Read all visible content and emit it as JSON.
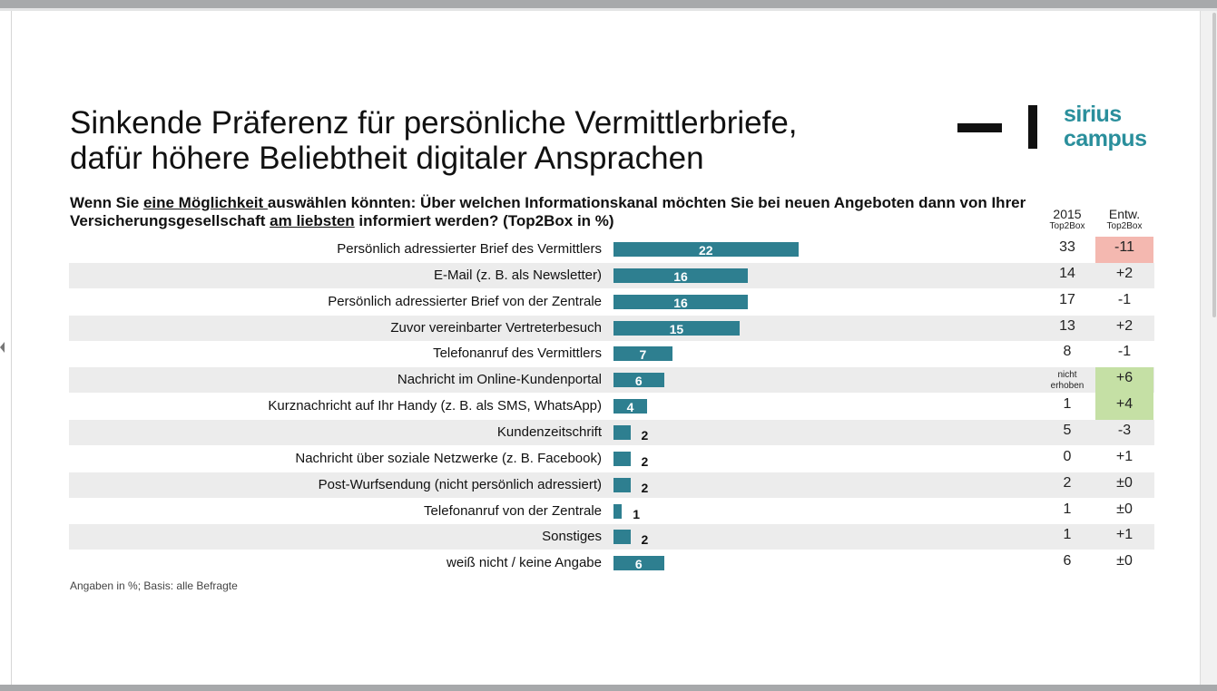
{
  "title_line1": "Sinkende Präferenz für persönliche Vermittlerbriefe,",
  "title_line2": "dafür höhere Beliebtheit digitaler Ansprachen",
  "logo": {
    "line1": "sirius",
    "line2": "campus"
  },
  "question": {
    "p1": "Wenn Sie ",
    "u1": "eine Möglichkeit ",
    "p2": "auswählen könnten: Über welchen Informationskanal möchten Sie bei neuen Angeboten dann von Ihrer Versicherungsgesellschaft ",
    "u2": "am liebsten",
    "p3": " informiert werden? (Top2Box in %)"
  },
  "col2015": {
    "main": "2015",
    "sub": "Top2Box"
  },
  "colEntw": {
    "main": "Entw.",
    "sub": "Top2Box"
  },
  "footnote": "Angaben in %; Basis: alle Befragte",
  "colors": {
    "bar": "#2e7f90",
    "negative_highlight": "#f4b8b0",
    "positive_highlight": "#c5e0a5",
    "stripe": "#ececec",
    "brand": "#2a8f9c"
  },
  "chart_data": {
    "type": "bar",
    "orientation": "horizontal",
    "categories": [
      "Persönlich adressierter Brief des Vermittlers",
      "E-Mail (z. B. als Newsletter)",
      "Persönlich adressierter Brief von der Zentrale",
      "Zuvor vereinbarter Vertreterbesuch",
      "Telefonanruf des Vermittlers",
      "Nachricht im Online-Kundenportal",
      "Kurznachricht auf Ihr Handy (z. B. als SMS, WhatsApp)",
      "Kundenzeitschrift",
      "Nachricht über soziale Netzwerke (z. B. Facebook)",
      "Post-Wurfsendung (nicht persönlich adressiert)",
      "Telefonanruf von der Zentrale",
      "Sonstiges",
      "weiß nicht / keine Angabe"
    ],
    "values": [
      22,
      16,
      16,
      15,
      7,
      6,
      4,
      2,
      2,
      2,
      1,
      2,
      6
    ],
    "value_labels": [
      "22",
      "16",
      "16",
      "15",
      "7",
      "6",
      "4",
      "2",
      "2",
      "2",
      "1",
      "2",
      "6"
    ],
    "values_2015": [
      "33",
      "14",
      "17",
      "13",
      "8",
      "nicht erhoben",
      "1",
      "5",
      "0",
      "2",
      "1",
      "1",
      "6"
    ],
    "change": [
      "-11",
      "+2",
      "-1",
      "+2",
      "-1",
      "+6",
      "+4",
      "-3",
      "+1",
      "±0",
      "±0",
      "+1",
      "±0"
    ],
    "change_highlight": [
      "negative",
      "",
      "",
      "",
      "",
      "positive",
      "positive",
      "",
      "",
      "",
      "",
      "",
      ""
    ],
    "xlim": [
      0,
      33
    ],
    "grid": false,
    "legend": "none"
  }
}
